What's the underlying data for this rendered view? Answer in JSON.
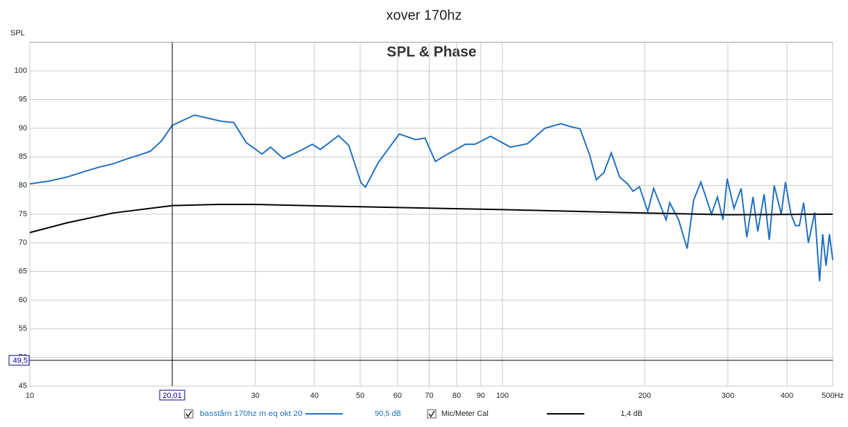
{
  "chart_data": {
    "type": "line",
    "title": "xover 170hz",
    "subtitle": "SPL & Phase",
    "y_label": "SPL",
    "xlog": true,
    "grid": true,
    "xlim": [
      10,
      500
    ],
    "ylim": [
      45,
      105
    ],
    "xticks": [
      10,
      30,
      40,
      50,
      60,
      70,
      80,
      90,
      100,
      200,
      300,
      400,
      {
        "value": 500,
        "label": "500Hz"
      }
    ],
    "yticks": [
      45,
      50,
      55,
      60,
      65,
      70,
      75,
      80,
      85,
      90,
      95,
      100
    ],
    "cursor_x": {
      "value": 20.01,
      "label": "20,01"
    },
    "cursor_y": {
      "value": 49.5,
      "label": "49,5"
    },
    "series": [
      {
        "name": "basstårn 170hz m eq okt 20",
        "color": "#1f6fbf",
        "readout": "90,5 dB",
        "x": [
          10,
          11,
          12,
          13,
          14,
          15,
          16,
          17,
          18,
          19,
          20.01,
          22.3,
          25.5,
          27,
          28.7,
          31,
          32.3,
          34.4,
          37.6,
          39.6,
          41.2,
          45,
          47.3,
          50.2,
          51.3,
          54.6,
          60.5,
          65.5,
          68.6,
          72.1,
          76.6,
          83.5,
          87.5,
          94.4,
          104,
          113,
          123,
          133,
          139,
          146,
          153,
          158,
          164,
          170,
          177,
          184,
          189,
          195,
          203,
          209,
          222,
          226,
          236,
          246,
          254,
          263,
          277,
          285,
          293,
          299,
          309,
          320,
          329,
          339,
          347,
          358,
          367,
          376,
          389,
          397,
          408,
          417,
          425,
          434,
          444,
          458,
          469,
          476,
          484,
          492,
          500
        ],
        "values": [
          80.3,
          80.8,
          81.5,
          82.4,
          83.2,
          83.8,
          84.6,
          85.3,
          86.0,
          87.8,
          90.5,
          92.3,
          91.2,
          91.0,
          87.5,
          85.5,
          86.7,
          84.7,
          86.2,
          87.2,
          86.3,
          88.7,
          87.0,
          80.5,
          79.7,
          84.0,
          89.0,
          88.0,
          88.3,
          84.2,
          85.5,
          87.2,
          87.2,
          88.6,
          86.7,
          87.3,
          90.0,
          90.8,
          90.3,
          89.9,
          85.3,
          81.0,
          82.3,
          85.7,
          81.5,
          80.3,
          79.0,
          79.8,
          75.5,
          79.5,
          74.0,
          77.0,
          74.0,
          69.0,
          77.5,
          80.6,
          75.0,
          78.0,
          74.0,
          81.2,
          76.0,
          79.5,
          71.0,
          78.0,
          72.0,
          78.5,
          70.5,
          80.0,
          75.0,
          80.6,
          75.0,
          73.0,
          73.0,
          77.0,
          70.0,
          75.3,
          63.3,
          71.5,
          66.0,
          71.5,
          67.0
        ]
      },
      {
        "name": "Mic/Meter Cal",
        "color": "#000000",
        "readout": "1,4 dB",
        "x": [
          10,
          12,
          15,
          20,
          25,
          30,
          50,
          100,
          200,
          300,
          500
        ],
        "values": [
          71.8,
          73.5,
          75.2,
          76.5,
          76.7,
          76.7,
          76.3,
          75.8,
          75.2,
          74.9,
          75.0
        ]
      }
    ]
  }
}
